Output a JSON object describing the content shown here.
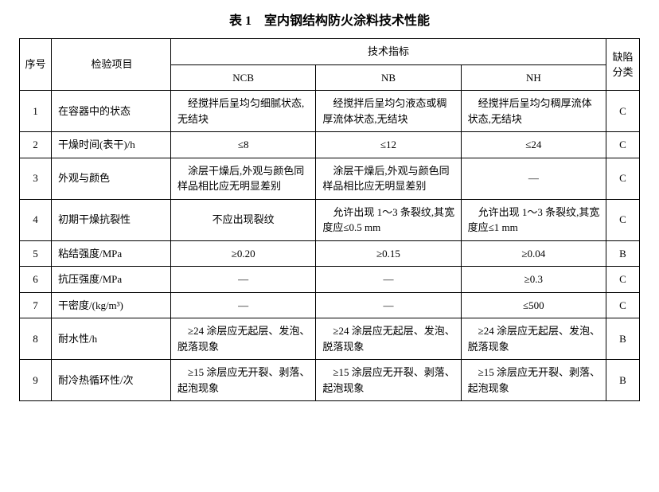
{
  "title": "表 1　室内钢结构防火涂料技术性能",
  "header": {
    "seq": "序号",
    "item": "检验项目",
    "tech": "技术指标",
    "ncb": "NCB",
    "nb": "NB",
    "nh": "NH",
    "defect": "缺陷分类"
  },
  "rows": [
    {
      "seq": "1",
      "item": "在容器中的状态",
      "ncb": "　经搅拌后呈均匀细腻状态,无结块",
      "nb": "　经搅拌后呈均匀液态或稠厚流体状态,无结块",
      "nh": "　经搅拌后呈均匀稠厚流体状态,无结块",
      "defect": "C",
      "ncb_align": "left",
      "nb_align": "left",
      "nh_align": "left"
    },
    {
      "seq": "2",
      "item": "干燥时间(表干)/h",
      "ncb": "≤8",
      "nb": "≤12",
      "nh": "≤24",
      "defect": "C",
      "ncb_align": "center",
      "nb_align": "center",
      "nh_align": "center"
    },
    {
      "seq": "3",
      "item": "外观与颜色",
      "ncb": "　涂层干燥后,外观与颜色同样品相比应无明显差别",
      "nb": "　涂层干燥后,外观与颜色同样品相比应无明显差别",
      "nh": "—",
      "defect": "C",
      "ncb_align": "left",
      "nb_align": "left",
      "nh_align": "center"
    },
    {
      "seq": "4",
      "item": "初期干燥抗裂性",
      "ncb": "不应出现裂纹",
      "nb": "　允许出现 1～3 条裂纹,其宽度应≤0.5 mm",
      "nh": "　允许出现 1～3 条裂纹,其宽度应≤1 mm",
      "defect": "C",
      "ncb_align": "center",
      "nb_align": "left",
      "nh_align": "left"
    },
    {
      "seq": "5",
      "item": "粘结强度/MPa",
      "ncb": "≥0.20",
      "nb": "≥0.15",
      "nh": "≥0.04",
      "defect": "B",
      "ncb_align": "center",
      "nb_align": "center",
      "nh_align": "center"
    },
    {
      "seq": "6",
      "item": "抗压强度/MPa",
      "ncb": "—",
      "nb": "—",
      "nh": "≥0.3",
      "defect": "C",
      "ncb_align": "center",
      "nb_align": "center",
      "nh_align": "center"
    },
    {
      "seq": "7",
      "item": "干密度/(kg/m³)",
      "ncb": "—",
      "nb": "—",
      "nh": "≤500",
      "defect": "C",
      "ncb_align": "center",
      "nb_align": "center",
      "nh_align": "center"
    },
    {
      "seq": "8",
      "item": "耐水性/h",
      "ncb": "　≥24 涂层应无起层、发泡、脱落现象",
      "nb": "　≥24 涂层应无起层、发泡、脱落现象",
      "nh": "　≥24 涂层应无起层、发泡、脱落现象",
      "defect": "B",
      "ncb_align": "left",
      "nb_align": "left",
      "nh_align": "left"
    },
    {
      "seq": "9",
      "item": "耐冷热循环性/次",
      "ncb": "　≥15 涂层应无开裂、剥落、起泡现象",
      "nb": "　≥15 涂层应无开裂、剥落、起泡现象",
      "nh": "　≥15 涂层应无开裂、剥落、起泡现象",
      "defect": "B",
      "ncb_align": "left",
      "nb_align": "left",
      "nh_align": "left"
    }
  ],
  "styling": {
    "font_family": "SimSun",
    "title_fontsize": 16,
    "cell_fontsize": 13,
    "border_color": "#000000",
    "background_color": "#ffffff",
    "text_color": "#000000",
    "col_widths": {
      "seq": 40,
      "item": 150,
      "tech": 180,
      "defect": 42
    }
  }
}
